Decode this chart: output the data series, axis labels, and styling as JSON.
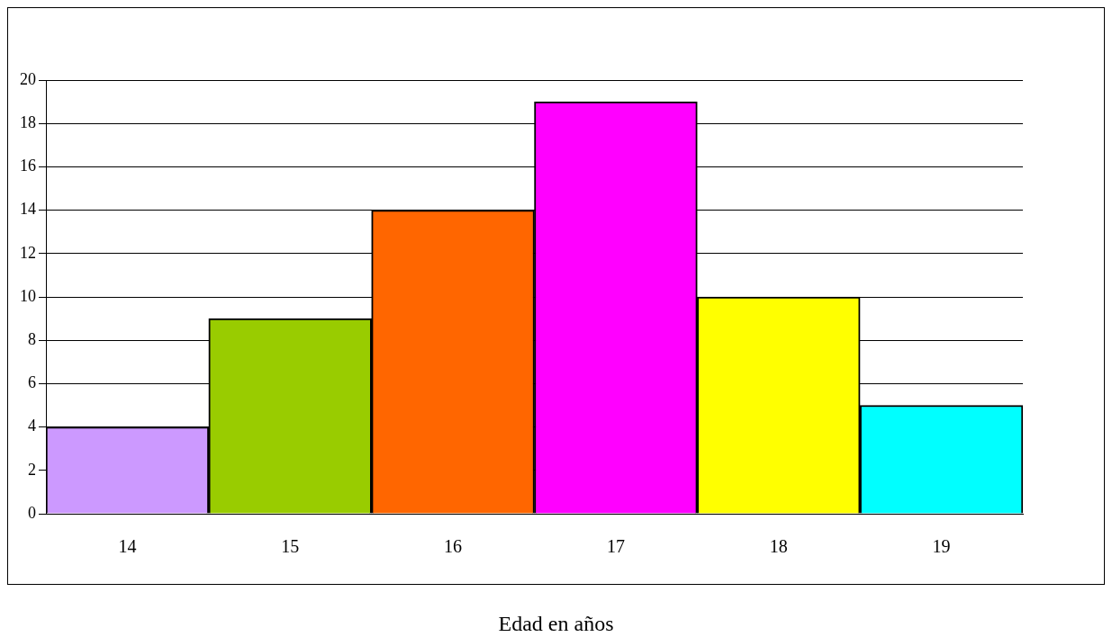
{
  "chart_data": {
    "type": "bar",
    "xlabel": "Edad en años",
    "categories": [
      "14",
      "15",
      "16",
      "17",
      "18",
      "19"
    ],
    "values": [
      4,
      9,
      14,
      19,
      10,
      5
    ],
    "colors": [
      "#cc99ff",
      "#99cc00",
      "#ff6600",
      "#ff00ff",
      "#ffff00",
      "#00ffff"
    ],
    "ylim": [
      0,
      20
    ],
    "yticks": [
      0,
      2,
      4,
      6,
      8,
      10,
      12,
      14,
      16,
      18,
      20
    ],
    "grid": "y",
    "legend": false
  }
}
